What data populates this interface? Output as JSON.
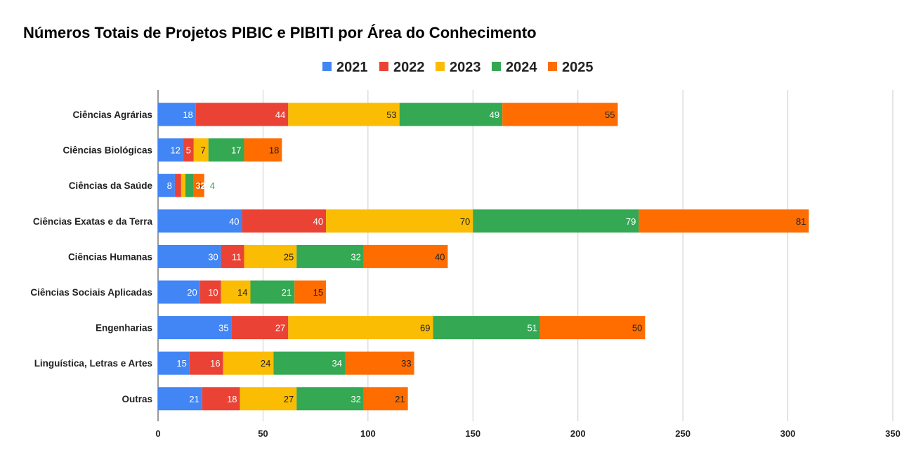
{
  "chart_data": {
    "type": "bar",
    "orientation": "horizontal",
    "stacked": true,
    "title": "Números Totais de Projetos PIBIC e PIBITI por Área do Conhecimento",
    "xlabel": "",
    "ylabel": "",
    "xlim": [
      0,
      350
    ],
    "xticks": [
      0,
      50,
      100,
      150,
      200,
      250,
      300,
      350
    ],
    "grid": true,
    "legend_position": "top-center",
    "categories": [
      "Ciências Agrárias",
      "Ciências Biológicas",
      "Ciências da Saúde",
      "Ciências Exatas e da Terra",
      "Ciências Humanas",
      "Ciências Sociais Aplicadas",
      "Engenharias",
      "Linguística, Letras e Artes",
      "Outras"
    ],
    "series": [
      {
        "name": "2021",
        "color": "#4285f4",
        "label_color": "#ffffff",
        "values": [
          18,
          12,
          8,
          40,
          30,
          20,
          35,
          15,
          21
        ]
      },
      {
        "name": "2022",
        "color": "#ea4335",
        "label_color": "#ffffff",
        "values": [
          44,
          5,
          3,
          40,
          11,
          10,
          27,
          16,
          18
        ]
      },
      {
        "name": "2023",
        "color": "#fbbc04",
        "label_color": "#222222",
        "values": [
          53,
          7,
          2,
          70,
          25,
          14,
          69,
          24,
          27
        ]
      },
      {
        "name": "2024",
        "color": "#34a853",
        "label_color": "#ffffff",
        "values": [
          49,
          17,
          4,
          79,
          32,
          21,
          51,
          34,
          32
        ]
      },
      {
        "name": "2025",
        "color": "#ff6d01",
        "label_color": "#222222",
        "values": [
          55,
          18,
          5,
          81,
          40,
          15,
          50,
          33,
          21
        ]
      }
    ]
  }
}
